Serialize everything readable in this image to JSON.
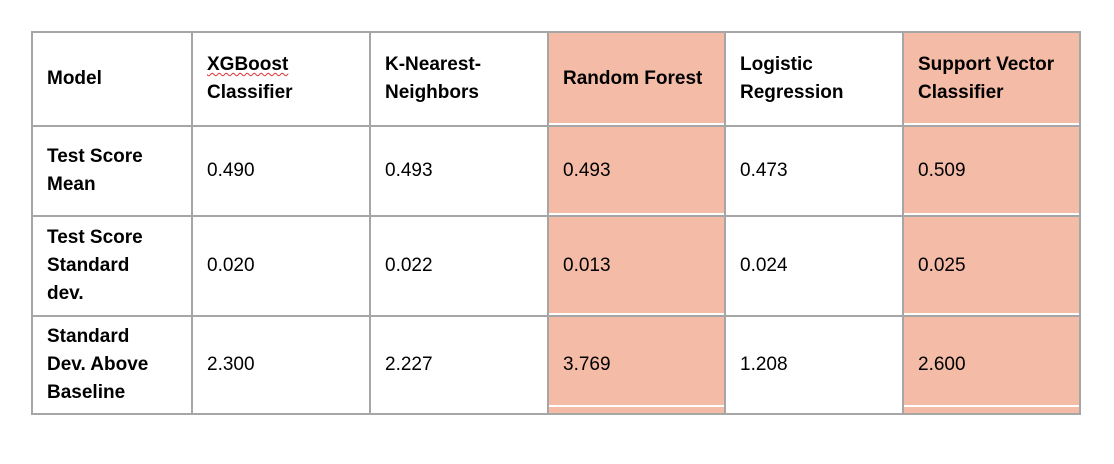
{
  "table": {
    "corner_label": "Model",
    "columns": [
      {
        "line1": "XGBoost",
        "line2": "Classifier"
      },
      {
        "line1": "K-Nearest-",
        "line2": "Neighbors"
      },
      {
        "line1": "Random Forest",
        "line2": ""
      },
      {
        "line1": "Logistic",
        "line2": "Regression"
      },
      {
        "line1": "Support Vector",
        "line2": "Classifier"
      }
    ],
    "highlighted_color": "#f4bba7",
    "rows": [
      {
        "label_lines": [
          "Test Score",
          "Mean"
        ],
        "values": [
          "0.490",
          "0.493",
          "0.493",
          "0.473",
          "0.509"
        ]
      },
      {
        "label_lines": [
          "Test Score",
          "Standard",
          "dev."
        ],
        "values": [
          "0.020",
          "0.022",
          "0.013",
          "0.024",
          "0.025"
        ]
      },
      {
        "label_lines": [
          "Standard",
          "Dev. Above",
          "Baseline"
        ],
        "values": [
          "2.300",
          "2.227",
          "3.769",
          "1.208",
          "2.600"
        ]
      }
    ]
  }
}
